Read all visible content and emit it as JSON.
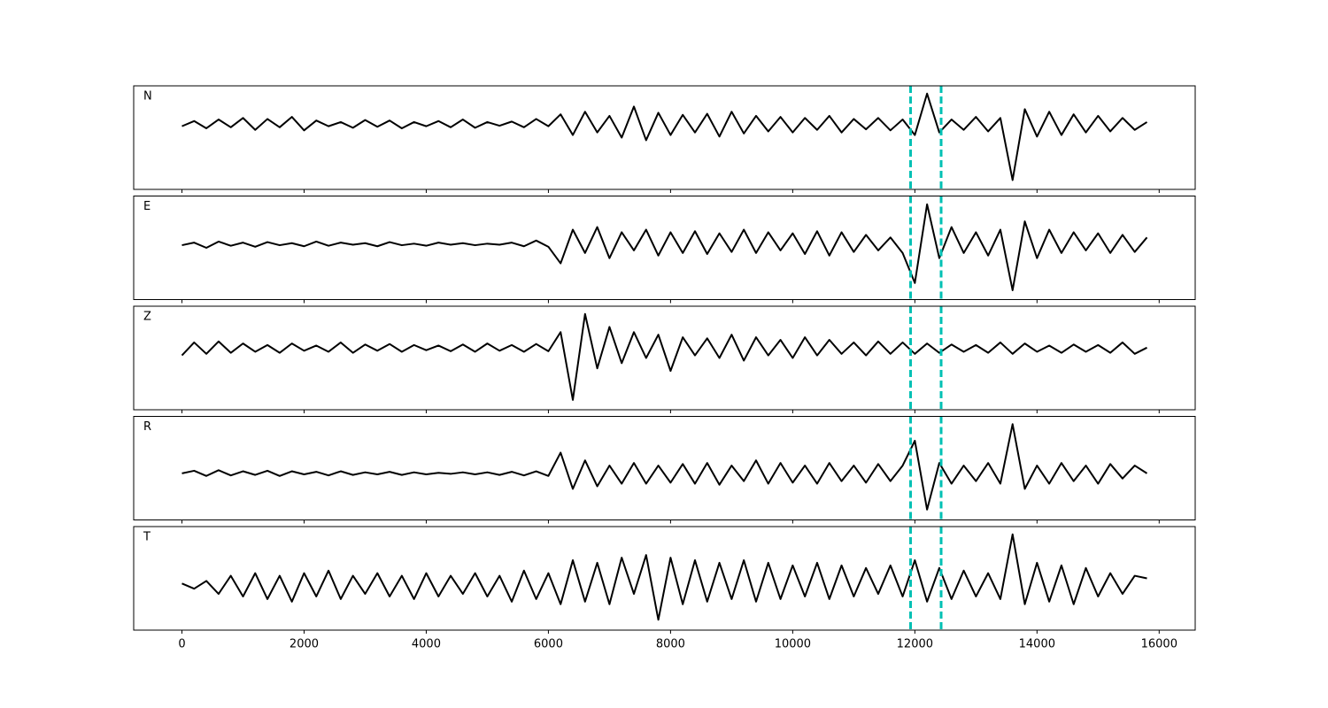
{
  "chart_data": {
    "type": "line",
    "x": [
      0,
      200,
      400,
      600,
      800,
      1000,
      1200,
      1400,
      1600,
      1800,
      2000,
      2200,
      2400,
      2600,
      2800,
      3000,
      3200,
      3400,
      3600,
      3800,
      4000,
      4200,
      4400,
      4600,
      4800,
      5000,
      5200,
      5400,
      5600,
      5800,
      6000,
      6200,
      6400,
      6600,
      6800,
      7000,
      7200,
      7400,
      7600,
      7800,
      8000,
      8200,
      8400,
      8600,
      8800,
      9000,
      9200,
      9400,
      9600,
      9800,
      10000,
      10200,
      10400,
      10600,
      10800,
      11000,
      11200,
      11400,
      11600,
      11800,
      12000,
      12200,
      12400,
      12600,
      12800,
      13000,
      13200,
      13400,
      13600,
      13800,
      14000,
      14200,
      14400,
      14600,
      14800,
      15000,
      15200,
      15400,
      15600,
      15800
    ],
    "xlim": [
      -790,
      16590
    ],
    "xticks": [
      0,
      2000,
      4000,
      6000,
      8000,
      10000,
      12000,
      14000,
      16000
    ],
    "ylim": [
      -1,
      1
    ],
    "vlines": [
      11930,
      12430
    ],
    "vline_color": "#00c0b4",
    "series": [
      {
        "name": "N",
        "color": "#000000",
        "values": [
          0.22,
          0.32,
          0.18,
          0.35,
          0.2,
          0.38,
          0.15,
          0.36,
          0.2,
          0.4,
          0.14,
          0.33,
          0.22,
          0.3,
          0.19,
          0.34,
          0.21,
          0.33,
          0.18,
          0.3,
          0.22,
          0.32,
          0.2,
          0.35,
          0.19,
          0.3,
          0.23,
          0.31,
          0.2,
          0.36,
          0.22,
          0.45,
          0.05,
          0.5,
          0.1,
          0.42,
          0.0,
          0.6,
          -0.05,
          0.48,
          0.05,
          0.44,
          0.1,
          0.46,
          0.02,
          0.5,
          0.08,
          0.42,
          0.12,
          0.4,
          0.1,
          0.38,
          0.15,
          0.42,
          0.1,
          0.36,
          0.16,
          0.38,
          0.14,
          0.35,
          0.05,
          0.85,
          0.1,
          0.35,
          0.15,
          0.4,
          0.12,
          0.38,
          -0.82,
          0.55,
          0.02,
          0.5,
          0.05,
          0.45,
          0.1,
          0.42,
          0.12,
          0.38,
          0.15,
          0.3
        ]
      },
      {
        "name": "E",
        "color": "#000000",
        "values": [
          0.05,
          0.1,
          0.0,
          0.12,
          0.04,
          0.1,
          0.02,
          0.11,
          0.05,
          0.09,
          0.03,
          0.12,
          0.04,
          0.1,
          0.06,
          0.09,
          0.03,
          0.11,
          0.05,
          0.08,
          0.04,
          0.1,
          0.06,
          0.09,
          0.05,
          0.08,
          0.06,
          0.1,
          0.03,
          0.14,
          0.02,
          -0.3,
          0.35,
          -0.1,
          0.4,
          -0.2,
          0.3,
          -0.05,
          0.35,
          -0.15,
          0.3,
          -0.1,
          0.32,
          -0.12,
          0.28,
          -0.08,
          0.35,
          -0.1,
          0.3,
          -0.05,
          0.28,
          -0.12,
          0.32,
          -0.15,
          0.3,
          -0.08,
          0.25,
          -0.05,
          0.2,
          -0.1,
          -0.68,
          0.84,
          -0.2,
          0.4,
          -0.1,
          0.3,
          -0.15,
          0.35,
          -0.82,
          0.51,
          -0.2,
          0.35,
          -0.1,
          0.3,
          -0.05,
          0.28,
          -0.1,
          0.25,
          -0.08,
          0.2
        ]
      },
      {
        "name": "Z",
        "color": "#000000",
        "values": [
          0.05,
          0.3,
          0.08,
          0.32,
          0.1,
          0.28,
          0.12,
          0.25,
          0.1,
          0.28,
          0.14,
          0.24,
          0.12,
          0.3,
          0.1,
          0.26,
          0.14,
          0.27,
          0.12,
          0.25,
          0.15,
          0.24,
          0.13,
          0.26,
          0.12,
          0.28,
          0.14,
          0.25,
          0.12,
          0.27,
          0.13,
          0.5,
          -0.81,
          0.85,
          -0.2,
          0.6,
          -0.1,
          0.5,
          0.0,
          0.45,
          -0.25,
          0.4,
          0.05,
          0.38,
          0.0,
          0.45,
          -0.05,
          0.4,
          0.05,
          0.35,
          0.0,
          0.4,
          0.05,
          0.35,
          0.08,
          0.3,
          0.05,
          0.32,
          0.08,
          0.3,
          0.08,
          0.28,
          0.1,
          0.26,
          0.12,
          0.25,
          0.1,
          0.3,
          0.08,
          0.28,
          0.12,
          0.24,
          0.1,
          0.26,
          0.12,
          0.25,
          0.1,
          0.3,
          0.08,
          0.2
        ]
      },
      {
        "name": "R",
        "color": "#000000",
        "values": [
          -0.1,
          -0.05,
          -0.15,
          -0.04,
          -0.14,
          -0.06,
          -0.13,
          -0.05,
          -0.15,
          -0.06,
          -0.12,
          -0.07,
          -0.14,
          -0.06,
          -0.13,
          -0.08,
          -0.12,
          -0.07,
          -0.13,
          -0.08,
          -0.12,
          -0.09,
          -0.11,
          -0.08,
          -0.12,
          -0.08,
          -0.13,
          -0.07,
          -0.14,
          -0.06,
          -0.15,
          0.3,
          -0.4,
          0.15,
          -0.35,
          0.05,
          -0.3,
          0.1,
          -0.3,
          0.05,
          -0.28,
          0.08,
          -0.3,
          0.1,
          -0.32,
          0.05,
          -0.25,
          0.15,
          -0.3,
          0.1,
          -0.28,
          0.05,
          -0.3,
          0.1,
          -0.25,
          0.05,
          -0.28,
          0.08,
          -0.25,
          0.05,
          0.53,
          -0.8,
          0.1,
          -0.3,
          0.05,
          -0.25,
          0.1,
          -0.3,
          0.85,
          -0.4,
          0.05,
          -0.3,
          0.1,
          -0.25,
          0.05,
          -0.3,
          0.08,
          -0.2,
          0.05,
          -0.1
        ]
      },
      {
        "name": "T",
        "color": "#000000",
        "values": [
          -0.1,
          -0.2,
          -0.05,
          -0.3,
          0.05,
          -0.35,
          0.1,
          -0.4,
          0.05,
          -0.45,
          0.1,
          -0.35,
          0.15,
          -0.4,
          0.05,
          -0.3,
          0.1,
          -0.35,
          0.05,
          -0.4,
          0.1,
          -0.35,
          0.05,
          -0.3,
          0.1,
          -0.35,
          0.05,
          -0.45,
          0.15,
          -0.4,
          0.1,
          -0.5,
          0.35,
          -0.45,
          0.3,
          -0.5,
          0.4,
          -0.3,
          0.45,
          -0.8,
          0.4,
          -0.5,
          0.35,
          -0.45,
          0.3,
          -0.4,
          0.35,
          -0.45,
          0.3,
          -0.4,
          0.25,
          -0.35,
          0.3,
          -0.4,
          0.25,
          -0.35,
          0.2,
          -0.3,
          0.25,
          -0.35,
          0.35,
          -0.45,
          0.2,
          -0.4,
          0.15,
          -0.35,
          0.1,
          -0.4,
          0.85,
          -0.5,
          0.3,
          -0.45,
          0.25,
          -0.5,
          0.2,
          -0.35,
          0.1,
          -0.3,
          0.05,
          0.0
        ]
      }
    ]
  }
}
